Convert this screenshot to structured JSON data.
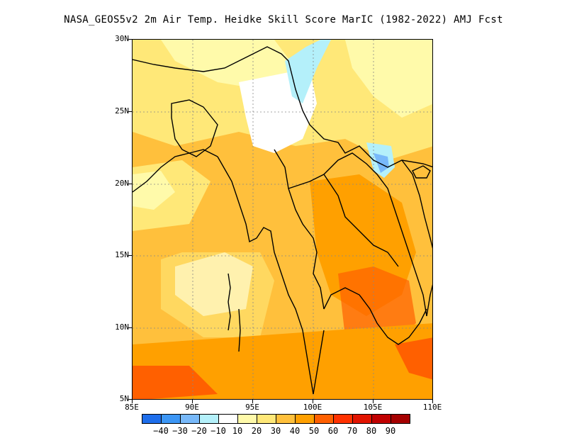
{
  "title": "NASA_GEOS5v2  2m Air Temp. Heidke Skill Score MarIC (1982-2022) AMJ Fcst",
  "lat_labels": [
    "30N",
    "25N",
    "20N",
    "15N",
    "10N",
    "5N"
  ],
  "lon_labels": [
    "85E",
    "90E",
    "95E",
    "100E",
    "105E",
    "110E"
  ],
  "colorbar": {
    "colors": [
      "#1e6eeb",
      "#3c96f5",
      "#78b9fa",
      "#b4f0fa",
      "#ffffff",
      "#fffaaa",
      "#ffe878",
      "#ffc03c",
      "#ffa000",
      "#ff6000",
      "#ff3200",
      "#e11400",
      "#c00000",
      "#a50000"
    ],
    "labels": [
      "-40",
      "-30",
      "-20",
      "-10",
      "10",
      "20",
      "30",
      "40",
      "50",
      "60",
      "70",
      "80",
      "90"
    ]
  },
  "map_data": {
    "lon_range": [
      85,
      110
    ],
    "lat_range": [
      5,
      30
    ],
    "field": "2m Air Temp. Heidke Skill Score",
    "dominant_values": "mostly 30-50 over land and ocean; 50-60 over Cambodia, southern Vietnam and the Gulf of Thailand/Bay of Bengal south; 0 to -20 over Yunnan/northern Myanmar and Laos-Vietnam border"
  }
}
